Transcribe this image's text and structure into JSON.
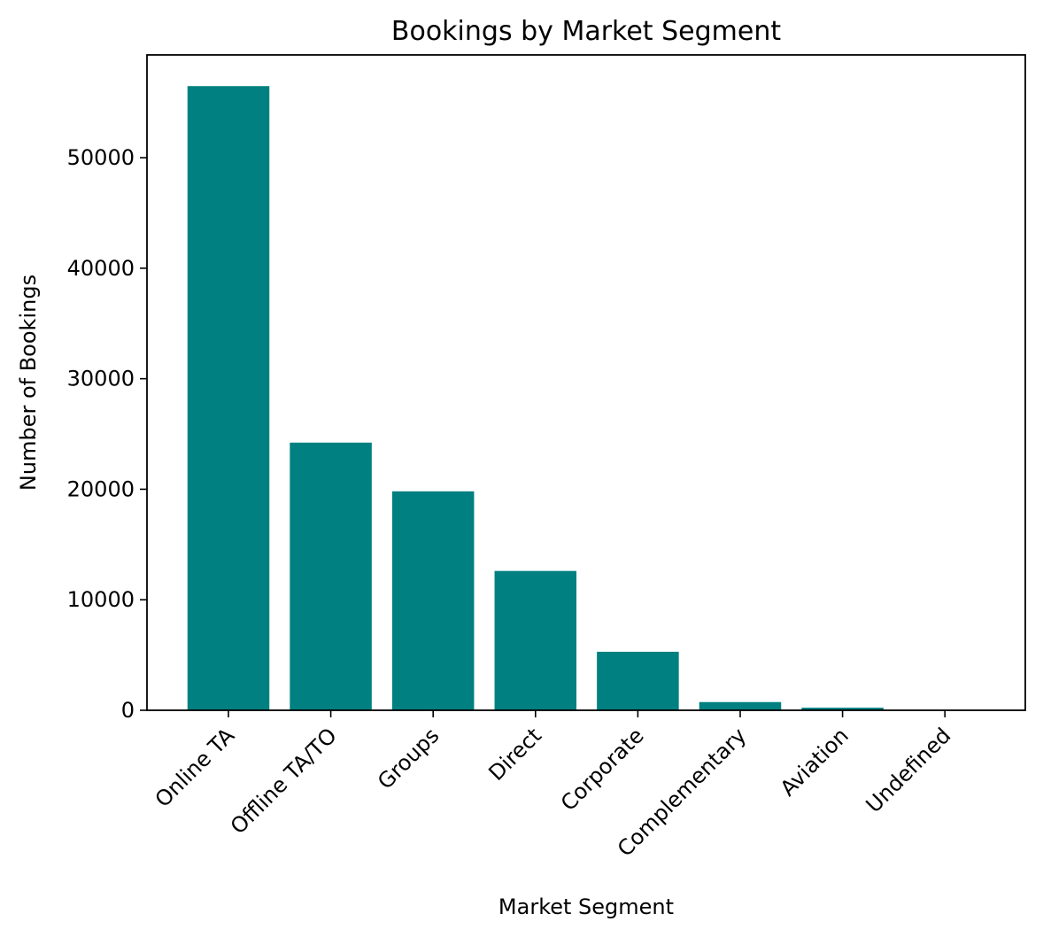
{
  "chart_data": {
    "type": "bar",
    "title": "Bookings by Market Segment",
    "xlabel": "Market Segment",
    "ylabel": "Number of Bookings",
    "categories": [
      "Online TA",
      "Offline TA/TO",
      "Groups",
      "Direct",
      "Corporate",
      "Complementary",
      "Aviation",
      "Undefined"
    ],
    "values": [
      56477,
      24219,
      19811,
      12606,
      5295,
      743,
      237,
      2
    ],
    "ylim": [
      0,
      59300
    ],
    "yticks": [
      0,
      10000,
      20000,
      30000,
      40000,
      50000
    ],
    "ytick_labels": [
      "0",
      "10000",
      "20000",
      "30000",
      "40000",
      "50000"
    ],
    "bar_color": "#008080",
    "grid": false,
    "legend": "none"
  }
}
